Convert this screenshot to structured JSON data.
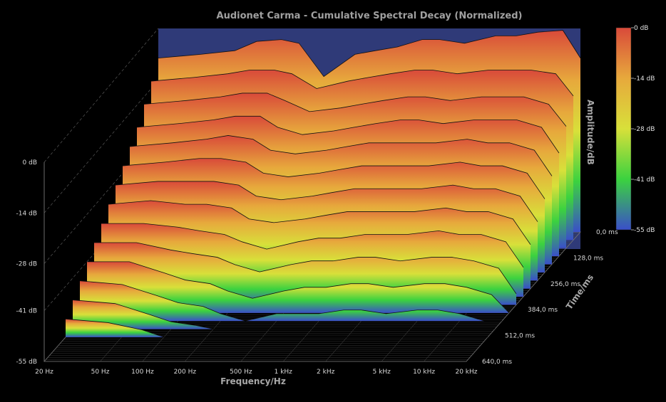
{
  "chart_data": {
    "type": "waterfall-3d",
    "title": "Audionet Carma - Cumulative Spectral Decay (Normalized)",
    "xlabel": "Frequency/Hz",
    "ylabel": "Amplitude/dB",
    "zlabel": "Time/ms",
    "x_scale": "log",
    "x_range": [
      20,
      20000
    ],
    "x_ticks": [
      "20 Hz",
      "50 Hz",
      "100 Hz",
      "200 Hz",
      "500 Hz",
      "1 kHz",
      "2 kHz",
      "5 kHz",
      "10 kHz",
      "20 kHz"
    ],
    "x_tick_values": [
      20,
      50,
      100,
      200,
      500,
      1000,
      2000,
      5000,
      10000,
      20000
    ],
    "y_range": [
      -55,
      0
    ],
    "y_ticks": [
      "0 dB",
      "-14 dB",
      "-28 dB",
      "-41 dB",
      "-55 dB"
    ],
    "y_tick_values": [
      0,
      -14,
      -28,
      -41,
      -55
    ],
    "time_range": [
      0,
      640
    ],
    "time_ticks": [
      "0,0 ms",
      "128,0 ms",
      "256,0 ms",
      "384,0 ms",
      "512,0 ms",
      "640,0 ms"
    ],
    "time_tick_values": [
      0,
      128,
      256,
      384,
      512,
      640
    ],
    "colorbar": {
      "labels": [
        "0 dB",
        "-14 dB",
        "-28 dB",
        "-41 dB",
        "-55 dB"
      ],
      "colors": [
        "#d94a3a",
        "#e7a93c",
        "#d8e03a",
        "#3bd23f",
        "#3a4fc9"
      ]
    },
    "series": [
      {
        "time_ms": 0,
        "freq_hz": [
          20,
          40,
          70,
          100,
          150,
          200,
          300,
          500,
          700,
          1000,
          1500,
          2000,
          3000,
          5000,
          7000,
          10000,
          15000,
          20000
        ],
        "db": [
          -8,
          -7,
          -6,
          -3.5,
          -3,
          -4,
          -13,
          -7,
          -6,
          -5,
          -3,
          -3,
          -4,
          -2,
          -2,
          -1,
          -0.5,
          -8
        ]
      },
      {
        "time_ms": 40,
        "freq_hz": [
          20,
          40,
          70,
          100,
          150,
          200,
          300,
          500,
          700,
          1000,
          1500,
          2000,
          3000,
          5000,
          7000,
          10000,
          15000,
          20000
        ],
        "db": [
          -12,
          -11,
          -10,
          -9,
          -9,
          -10,
          -14,
          -12,
          -11,
          -10,
          -9,
          -9,
          -10,
          -9,
          -9,
          -9,
          -10,
          -16
        ]
      },
      {
        "time_ms": 80,
        "freq_hz": [
          20,
          40,
          70,
          100,
          150,
          200,
          300,
          500,
          700,
          1000,
          1500,
          2000,
          3000,
          5000,
          7000,
          10000,
          15000,
          20000
        ],
        "db": [
          -16,
          -15,
          -14,
          -13,
          -13,
          -15,
          -18,
          -17,
          -16,
          -15,
          -14,
          -14,
          -15,
          -14,
          -14,
          -14,
          -16,
          -22
        ]
      },
      {
        "time_ms": 120,
        "freq_hz": [
          20,
          40,
          70,
          100,
          150,
          200,
          300,
          500,
          700,
          1000,
          1500,
          2000,
          3000,
          5000,
          7000,
          10000,
          15000,
          20000
        ],
        "db": [
          -20,
          -19,
          -18,
          -17,
          -17,
          -20,
          -22,
          -21,
          -20,
          -19,
          -18,
          -18,
          -19,
          -18,
          -18,
          -18,
          -20,
          -27
        ]
      },
      {
        "time_ms": 160,
        "freq_hz": [
          20,
          40,
          70,
          100,
          150,
          200,
          300,
          500,
          700,
          1000,
          1500,
          2000,
          3000,
          5000,
          7000,
          10000,
          15000,
          20000
        ],
        "db": [
          -23,
          -22,
          -21,
          -20,
          -21,
          -24,
          -25,
          -24,
          -23,
          -22,
          -22,
          -22,
          -22,
          -21,
          -22,
          -22,
          -24,
          -31
        ]
      },
      {
        "time_ms": 200,
        "freq_hz": [
          20,
          40,
          70,
          100,
          150,
          200,
          300,
          500,
          700,
          1000,
          1500,
          2000,
          3000,
          5000,
          7000,
          10000,
          15000,
          20000
        ],
        "db": [
          -26,
          -25,
          -24,
          -24,
          -25,
          -28,
          -29,
          -28,
          -27,
          -26,
          -26,
          -26,
          -26,
          -25,
          -26,
          -26,
          -28,
          -35
        ]
      },
      {
        "time_ms": 240,
        "freq_hz": [
          20,
          40,
          70,
          100,
          150,
          200,
          300,
          500,
          700,
          1000,
          1500,
          2000,
          3000,
          5000,
          7000,
          10000,
          15000,
          20000
        ],
        "db": [
          -29,
          -28,
          -28,
          -28,
          -29,
          -32,
          -33,
          -32,
          -31,
          -30,
          -30,
          -30,
          -30,
          -29,
          -30,
          -30,
          -32,
          -39
        ]
      },
      {
        "time_ms": 280,
        "freq_hz": [
          20,
          40,
          70,
          100,
          150,
          200,
          300,
          500,
          700,
          1000,
          1500,
          2000,
          3000,
          5000,
          7000,
          10000,
          15000,
          20000
        ],
        "db": [
          -32,
          -31,
          -32,
          -32,
          -33,
          -36,
          -37,
          -36,
          -35,
          -34,
          -34,
          -34,
          -34,
          -33,
          -34,
          -34,
          -36,
          -43
        ]
      },
      {
        "time_ms": 320,
        "freq_hz": [
          20,
          40,
          70,
          100,
          150,
          200,
          300,
          500,
          700,
          1000,
          1500,
          2000,
          3000,
          5000,
          7000,
          10000,
          15000,
          20000
        ],
        "db": [
          -35,
          -35,
          -36,
          -37,
          -38,
          -40,
          -42,
          -40,
          -39,
          -39,
          -38,
          -38,
          -38,
          -37,
          -38,
          -38,
          -40,
          -47
        ]
      },
      {
        "time_ms": 360,
        "freq_hz": [
          20,
          40,
          70,
          100,
          150,
          200,
          300,
          500,
          700,
          1000,
          1500,
          2000,
          3000,
          5000,
          7000,
          10000,
          15000,
          20000
        ],
        "db": [
          -38,
          -38,
          -40,
          -41,
          -42,
          -44,
          -46,
          -44,
          -43,
          -43,
          -42,
          -42,
          -43,
          -42,
          -42,
          -43,
          -45,
          -52
        ]
      },
      {
        "time_ms": 400,
        "freq_hz": [
          20,
          40,
          70,
          100,
          150,
          200,
          300,
          500,
          700,
          1000,
          1500,
          2000,
          3000,
          5000,
          7000,
          10000,
          15000,
          20000
        ],
        "db": [
          -41,
          -41,
          -44,
          -46,
          -47,
          -49,
          -51,
          -49,
          -48,
          -48,
          -47,
          -47,
          -48,
          -47,
          -47,
          -48,
          -50,
          -55
        ]
      },
      {
        "time_ms": 440,
        "freq_hz": [
          20,
          40,
          70,
          100,
          150,
          200,
          300,
          500,
          700,
          1000,
          1500,
          2000,
          3000,
          5000,
          7000,
          10000,
          15000,
          20000
        ],
        "db": [
          -44,
          -45,
          -48,
          -50,
          -51,
          -53,
          -55,
          -53,
          -53,
          -53,
          -52,
          -52,
          -53,
          -52,
          -52,
          -53,
          -55,
          -55
        ]
      },
      {
        "time_ms": 480,
        "freq_hz": [
          20,
          40,
          70,
          100,
          150,
          200,
          300,
          500,
          700,
          1000,
          1500,
          2000,
          3000,
          5000,
          7000,
          10000,
          15000,
          20000
        ],
        "db": [
          -47,
          -48,
          -51,
          -53,
          -54,
          -55,
          -55,
          -55,
          -55,
          -55,
          -55,
          -55,
          -55,
          -55,
          -55,
          -55,
          -55,
          -55
        ]
      },
      {
        "time_ms": 520,
        "freq_hz": [
          20,
          40,
          70,
          100,
          150,
          200,
          300,
          500,
          700,
          1000,
          1500,
          2000,
          3000,
          5000,
          7000,
          10000,
          15000,
          20000
        ],
        "db": [
          -50,
          -51,
          -53,
          -55,
          -55,
          -55,
          -55,
          -55,
          -55,
          -55,
          -55,
          -55,
          -55,
          -55,
          -55,
          -55,
          -55,
          -55
        ]
      }
    ]
  }
}
